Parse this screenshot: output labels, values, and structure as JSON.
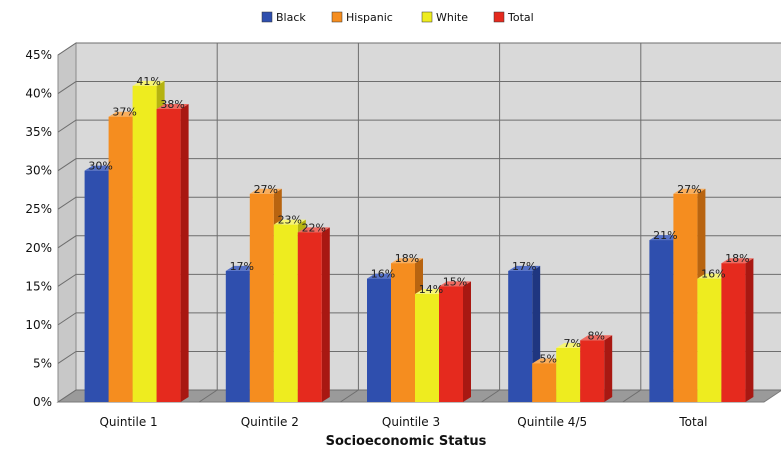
{
  "chart_data": {
    "type": "bar",
    "title": "",
    "xlabel": "Socioeconomic Status",
    "ylabel": "",
    "categories": [
      "Quintile 1",
      "Quintile 2",
      "Quintile 3",
      "Quintile 4/5",
      "Total"
    ],
    "series": [
      {
        "name": "Black",
        "color": "#2f4fae",
        "side": "#1f3680",
        "top": "#5571c8",
        "values": [
          30,
          17,
          16,
          17,
          21
        ],
        "labels": [
          "30%",
          "17%",
          "16%",
          "17%",
          "21%"
        ]
      },
      {
        "name": "Hispanic",
        "color": "#f58d1f",
        "side": "#b86410",
        "top": "#f9ae5d",
        "values": [
          37,
          27,
          18,
          5,
          27
        ],
        "labels": [
          "37%",
          "27%",
          "18%",
          "5%",
          "27%"
        ]
      },
      {
        "name": "White",
        "color": "#eeec1f",
        "side": "#b5b310",
        "top": "#f6f474",
        "values": [
          41,
          23,
          14,
          7,
          16
        ],
        "labels": [
          "41%",
          "23%",
          "14%",
          "7%",
          "16%"
        ]
      },
      {
        "name": "Total",
        "color": "#e52a1e",
        "side": "#a81812",
        "top": "#ef6a60",
        "values": [
          38,
          22,
          15,
          8,
          18
        ],
        "labels": [
          "38%",
          "22%",
          "15%",
          "8%",
          "18%"
        ]
      }
    ],
    "ylim": [
      0,
      45
    ],
    "yticks": [
      "0%",
      "5%",
      "10%",
      "15%",
      "20%",
      "25%",
      "30%",
      "35%",
      "40%",
      "45%"
    ],
    "legend_position": "top",
    "grid": true,
    "style": "3d-clustered-column"
  }
}
